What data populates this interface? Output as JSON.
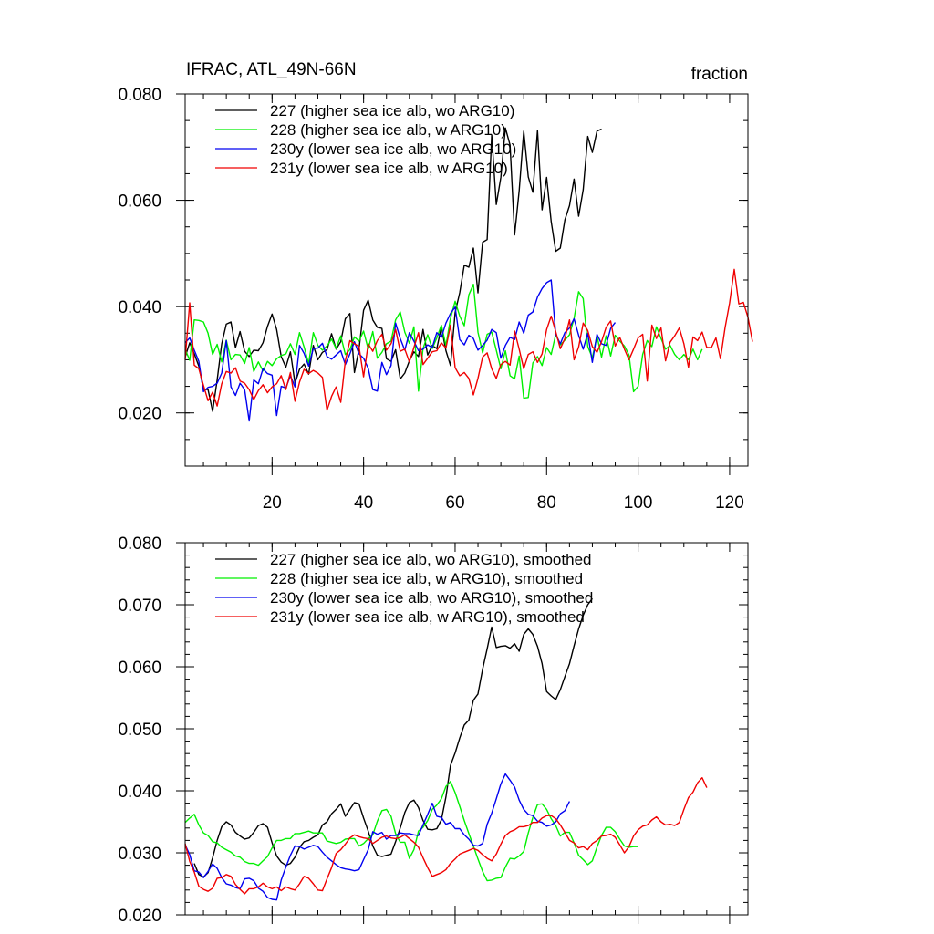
{
  "chart_data": [
    {
      "type": "line",
      "title_left": "IFRAC, ATL_49N-66N",
      "title_right": "fraction",
      "xlim": [
        1,
        124
      ],
      "ylim": [
        0.01,
        0.08
      ],
      "x_ticks": [
        20,
        40,
        60,
        80,
        100,
        120
      ],
      "x_tick_labels": [
        "20",
        "40",
        "60",
        "80",
        "100",
        "120"
      ],
      "y_ticks": [
        0.02,
        0.04,
        0.06,
        0.08
      ],
      "y_tick_labels": [
        "0.020",
        "0.040",
        "0.060",
        "0.080"
      ],
      "y_minor_step": 0.005,
      "x_minor_step": 5,
      "show_x_labels": true,
      "legend_position": "top-left",
      "series": [
        {
          "name": "227 (higher sea ice alb, wo ARG10)",
          "color": "#000000",
          "x_start": 1,
          "values": [
            0.0305,
            0.0332,
            0.0311,
            0.0288,
            0.0244,
            0.0244,
            0.0203,
            0.0262,
            0.033,
            0.0367,
            0.0371,
            0.0323,
            0.0353,
            0.0316,
            0.0306,
            0.0318,
            0.0317,
            0.0332,
            0.0363,
            0.0386,
            0.0357,
            0.0306,
            0.0286,
            0.0315,
            0.0256,
            0.0282,
            0.0292,
            0.0273,
            0.0327,
            0.03,
            0.0314,
            0.0319,
            0.0349,
            0.032,
            0.0334,
            0.0377,
            0.0387,
            0.0276,
            0.032,
            0.0393,
            0.0412,
            0.0375,
            0.0361,
            0.0359,
            0.0302,
            0.0297,
            0.0319,
            0.0264,
            0.0275,
            0.0298,
            0.0315,
            0.0306,
            0.0357,
            0.0309,
            0.0327,
            0.0321,
            0.0362,
            0.0317,
            0.0289,
            0.0389,
            0.0426,
            0.0478,
            0.0474,
            0.051,
            0.0426,
            0.0521,
            0.0526,
            0.0723,
            0.0592,
            0.0643,
            0.0736,
            0.0704,
            0.0535,
            0.0618,
            0.073,
            0.0644,
            0.0615,
            0.0731,
            0.0582,
            0.0643,
            0.056,
            0.0504,
            0.051,
            0.0563,
            0.059,
            0.064,
            0.057,
            0.062,
            0.072,
            0.069,
            0.073,
            0.0734
          ]
        },
        {
          "name": "228 (higher sea ice alb, w ARG10)",
          "color": "#00f000",
          "x_start": 1,
          "values": [
            0.032,
            0.0299,
            0.0375,
            0.0374,
            0.0371,
            0.035,
            0.031,
            0.0329,
            0.0296,
            0.0337,
            0.03,
            0.031,
            0.0309,
            0.0293,
            0.0323,
            0.0278,
            0.0296,
            0.0279,
            0.0297,
            0.0289,
            0.0302,
            0.0308,
            0.0311,
            0.033,
            0.031,
            0.0351,
            0.0324,
            0.0293,
            0.0351,
            0.0327,
            0.0318,
            0.0326,
            0.0339,
            0.0321,
            0.0345,
            0.031,
            0.0319,
            0.0343,
            0.0335,
            0.0354,
            0.032,
            0.0353,
            0.0303,
            0.0314,
            0.033,
            0.0335,
            0.0375,
            0.039,
            0.0352,
            0.0331,
            0.0362,
            0.0241,
            0.0321,
            0.0347,
            0.0321,
            0.0341,
            0.0365,
            0.0327,
            0.0378,
            0.041,
            0.0382,
            0.0364,
            0.0422,
            0.0442,
            0.0352,
            0.0313,
            0.0348,
            0.0352,
            0.0318,
            0.0283,
            0.0317,
            0.027,
            0.0264,
            0.0307,
            0.0228,
            0.0229,
            0.0294,
            0.0306,
            0.0289,
            0.0323,
            0.031,
            0.0348,
            0.0328,
            0.0337,
            0.0347,
            0.0378,
            0.0428,
            0.0415,
            0.0325,
            0.0304,
            0.0345,
            0.0305,
            0.0345,
            0.0307,
            0.0346,
            0.0335,
            0.0326,
            0.0309,
            0.024,
            0.025,
            0.031,
            0.0336,
            0.0325,
            0.0362,
            0.034,
            0.032,
            0.0327,
            0.031,
            0.03,
            0.031,
            0.03,
            0.032,
            0.03,
            0.032
          ]
        },
        {
          "name": "230y (lower sea ice alb, wo ARG10)",
          "color": "#0000f0",
          "x_start": 1,
          "values": [
            0.0332,
            0.0341,
            0.0318,
            0.0297,
            0.024,
            0.0248,
            0.025,
            0.0256,
            0.0275,
            0.0336,
            0.0249,
            0.0233,
            0.0256,
            0.0244,
            0.0185,
            0.0262,
            0.0255,
            0.0283,
            0.0274,
            0.0271,
            0.0195,
            0.025,
            0.0247,
            0.027,
            0.0249,
            0.0327,
            0.0312,
            0.0288,
            0.0321,
            0.0322,
            0.0331,
            0.0306,
            0.0301,
            0.0309,
            0.0317,
            0.0291,
            0.0311,
            0.0334,
            0.0311,
            0.0303,
            0.0284,
            0.0244,
            0.0241,
            0.0295,
            0.0272,
            0.0289,
            0.0369,
            0.034,
            0.0318,
            0.0351,
            0.0335,
            0.0317,
            0.032,
            0.0328,
            0.0323,
            0.0351,
            0.0342,
            0.0369,
            0.0387,
            0.0399,
            0.0338,
            0.0328,
            0.0346,
            0.034,
            0.0318,
            0.0327,
            0.0337,
            0.0357,
            0.0351,
            0.0303,
            0.0327,
            0.0342,
            0.0338,
            0.0371,
            0.035,
            0.0384,
            0.039,
            0.0418,
            0.0434,
            0.0445,
            0.045,
            0.0348,
            0.033,
            0.0351,
            0.036,
            0.0377,
            0.0346,
            0.032,
            0.035,
            0.0295,
            0.0348,
            0.033,
            0.0327,
            0.0359,
            0.037
          ]
        },
        {
          "name": "231y (lower sea ice alb, w ARG10)",
          "color": "#f00000",
          "x_start": 1,
          "values": [
            0.03,
            0.0407,
            0.029,
            0.0283,
            0.0252,
            0.0223,
            0.0239,
            0.0213,
            0.0255,
            0.0278,
            0.0275,
            0.0285,
            0.026,
            0.0256,
            0.0244,
            0.0225,
            0.0242,
            0.0253,
            0.0238,
            0.0249,
            0.0255,
            0.027,
            0.0244,
            0.0276,
            0.0222,
            0.0258,
            0.0282,
            0.0274,
            0.028,
            0.0275,
            0.0267,
            0.0205,
            0.0231,
            0.0249,
            0.022,
            0.0298,
            0.0336,
            0.033,
            0.0325,
            0.0268,
            0.033,
            0.0316,
            0.0336,
            0.0348,
            0.0318,
            0.033,
            0.0357,
            0.0316,
            0.032,
            0.0296,
            0.0323,
            0.0351,
            0.0291,
            0.0303,
            0.0315,
            0.0317,
            0.0332,
            0.0322,
            0.0365,
            0.0285,
            0.027,
            0.0276,
            0.0265,
            0.0234,
            0.0265,
            0.0305,
            0.0313,
            0.0283,
            0.0265,
            0.0291,
            0.0297,
            0.029,
            0.0354,
            0.032,
            0.0283,
            0.031,
            0.0315,
            0.0295,
            0.0311,
            0.0357,
            0.0382,
            0.0353,
            0.0321,
            0.034,
            0.0375,
            0.03,
            0.0324,
            0.0369,
            0.0355,
            0.0325,
            0.0314,
            0.0334,
            0.0361,
            0.0373,
            0.0326,
            0.0342,
            0.032,
            0.03,
            0.032,
            0.0341,
            0.0348,
            0.026,
            0.0365,
            0.034,
            0.036,
            0.0298,
            0.0333,
            0.0345,
            0.036,
            0.033,
            0.0286,
            0.0343,
            0.0336,
            0.0352,
            0.0323,
            0.0323,
            0.0341,
            0.0302,
            0.036,
            0.0407,
            0.047,
            0.0405,
            0.0408,
            0.038,
            0.0334
          ]
        }
      ]
    },
    {
      "type": "line",
      "xlim": [
        1,
        124
      ],
      "ylim": [
        0.02,
        0.08
      ],
      "x_ticks": [
        20,
        40,
        60,
        80,
        100,
        120
      ],
      "x_tick_labels": [],
      "y_ticks": [
        0.02,
        0.03,
        0.04,
        0.05,
        0.06,
        0.07,
        0.08
      ],
      "y_tick_labels": [
        "0.020",
        "0.030",
        "0.040",
        "0.050",
        "0.060",
        "0.070",
        "0.080"
      ],
      "y_minor_step": 0.002,
      "x_minor_step": 5,
      "show_x_labels": false,
      "legend_position": "top-left",
      "series": [
        {
          "name": "227 (higher sea ice alb, wo ARG10), smoothed",
          "color": "#000000",
          "x_start": 3,
          "values": [
            0.0283,
            0.0265,
            0.0261,
            0.0268,
            0.0292,
            0.032,
            0.0342,
            0.035,
            0.0345,
            0.0333,
            0.0327,
            0.0322,
            0.0324,
            0.0333,
            0.0344,
            0.0347,
            0.0341,
            0.0316,
            0.0295,
            0.0285,
            0.028,
            0.0283,
            0.0293,
            0.0309,
            0.0318,
            0.032,
            0.0325,
            0.0329,
            0.0345,
            0.035,
            0.0363,
            0.037,
            0.0379,
            0.0359,
            0.037,
            0.0381,
            0.0379,
            0.0356,
            0.0335,
            0.0311,
            0.0296,
            0.0294,
            0.0296,
            0.0298,
            0.0318,
            0.034,
            0.0365,
            0.0381,
            0.0385,
            0.0373,
            0.0352,
            0.0338,
            0.0337,
            0.0339,
            0.0353,
            0.039,
            0.0441,
            0.0461,
            0.0485,
            0.0506,
            0.0514,
            0.0546,
            0.0556,
            0.0596,
            0.0629,
            0.0664,
            0.0631,
            0.0633,
            0.0634,
            0.063,
            0.0637,
            0.0625,
            0.0652,
            0.0661,
            0.0652,
            0.0633,
            0.0605,
            0.056,
            0.0553,
            0.0547,
            0.0563,
            0.0584,
            0.0605,
            0.0634,
            0.0661,
            0.0683,
            0.07,
            0.071
          ]
        },
        {
          "name": "228 (higher sea ice alb, w ARG10), smoothed",
          "color": "#00f000",
          "x_start": 1,
          "values": [
            0.0349,
            0.0356,
            0.0362,
            0.0345,
            0.0332,
            0.0328,
            0.0318,
            0.0316,
            0.0309,
            0.0305,
            0.0301,
            0.0295,
            0.0293,
            0.0286,
            0.0283,
            0.0283,
            0.028,
            0.0287,
            0.0294,
            0.0308,
            0.032,
            0.032,
            0.0323,
            0.0323,
            0.0331,
            0.0331,
            0.0333,
            0.0335,
            0.0332,
            0.0332,
            0.0332,
            0.0319,
            0.0317,
            0.0315,
            0.0317,
            0.0322,
            0.0323,
            0.0323,
            0.0311,
            0.0315,
            0.0323,
            0.0329,
            0.0351,
            0.0368,
            0.037,
            0.0359,
            0.0331,
            0.0317,
            0.0317,
            0.0291,
            0.0305,
            0.0335,
            0.0341,
            0.0352,
            0.037,
            0.0377,
            0.0387,
            0.0407,
            0.0415,
            0.0397,
            0.0375,
            0.0352,
            0.0331,
            0.0311,
            0.029,
            0.027,
            0.0255,
            0.0256,
            0.0259,
            0.026,
            0.0277,
            0.0291,
            0.029,
            0.0295,
            0.0302,
            0.0332,
            0.0357,
            0.0378,
            0.0379,
            0.037,
            0.0355,
            0.0344,
            0.0327,
            0.0333,
            0.0333,
            0.0316,
            0.0296,
            0.0289,
            0.0281,
            0.0287,
            0.0309,
            0.0328,
            0.0341,
            0.0341,
            0.0334,
            0.0322,
            0.0311,
            0.0309,
            0.031,
            0.031
          ]
        },
        {
          "name": "230y (lower sea ice alb, wo ARG10), smoothed",
          "color": "#0000f0",
          "x_start": 1,
          "values": [
            0.0313,
            0.0297,
            0.0271,
            0.0269,
            0.026,
            0.027,
            0.0282,
            0.0275,
            0.026,
            0.025,
            0.0248,
            0.0244,
            0.0242,
            0.0258,
            0.0259,
            0.0255,
            0.0243,
            0.0238,
            0.0228,
            0.0225,
            0.0224,
            0.0256,
            0.0277,
            0.0296,
            0.0311,
            0.031,
            0.0306,
            0.0309,
            0.0312,
            0.031,
            0.0301,
            0.0293,
            0.0287,
            0.0281,
            0.0276,
            0.0274,
            0.0273,
            0.0271,
            0.0273,
            0.0289,
            0.0305,
            0.0334,
            0.033,
            0.0333,
            0.0322,
            0.0328,
            0.0328,
            0.0332,
            0.0331,
            0.0331,
            0.0329,
            0.0328,
            0.0345,
            0.0362,
            0.038,
            0.0359,
            0.0357,
            0.0346,
            0.0349,
            0.0339,
            0.0339,
            0.0329,
            0.0322,
            0.0312,
            0.0311,
            0.0315,
            0.0346,
            0.0364,
            0.0387,
            0.0411,
            0.0427,
            0.0417,
            0.0406,
            0.0385,
            0.037,
            0.0362,
            0.036,
            0.0351,
            0.0349,
            0.0343,
            0.0345,
            0.035,
            0.0363,
            0.0368,
            0.0383
          ]
        },
        {
          "name": "231y (lower sea ice alb, w ARG10), smoothed",
          "color": "#f00000",
          "x_start": 1,
          "values": [
            0.0315,
            0.0286,
            0.0269,
            0.0246,
            0.0241,
            0.0238,
            0.0243,
            0.0259,
            0.026,
            0.0265,
            0.0262,
            0.0249,
            0.0241,
            0.0234,
            0.0242,
            0.0242,
            0.0245,
            0.0251,
            0.0245,
            0.0242,
            0.0245,
            0.0239,
            0.0245,
            0.0242,
            0.024,
            0.025,
            0.0262,
            0.0259,
            0.025,
            0.024,
            0.0239,
            0.0258,
            0.0276,
            0.0299,
            0.0305,
            0.0314,
            0.0324,
            0.0329,
            0.0326,
            0.0324,
            0.0323,
            0.0315,
            0.032,
            0.0325,
            0.0327,
            0.0324,
            0.0323,
            0.0325,
            0.0329,
            0.0323,
            0.0317,
            0.0309,
            0.0292,
            0.0276,
            0.0262,
            0.0265,
            0.0268,
            0.0273,
            0.0283,
            0.029,
            0.0298,
            0.0301,
            0.0304,
            0.0307,
            0.0304,
            0.0297,
            0.0291,
            0.0287,
            0.0298,
            0.0314,
            0.0328,
            0.0334,
            0.0337,
            0.0342,
            0.0342,
            0.0344,
            0.0349,
            0.0349,
            0.0356,
            0.036,
            0.036,
            0.0355,
            0.0345,
            0.0333,
            0.032,
            0.0316,
            0.0308,
            0.031,
            0.0305,
            0.0315,
            0.032,
            0.0327,
            0.0328,
            0.033,
            0.0325,
            0.0313,
            0.03,
            0.031,
            0.0327,
            0.0337,
            0.0343,
            0.0345,
            0.0353,
            0.0358,
            0.035,
            0.0345,
            0.0346,
            0.0344,
            0.0349,
            0.037,
            0.0389,
            0.0398,
            0.0413,
            0.0421,
            0.0405
          ]
        }
      ]
    }
  ]
}
